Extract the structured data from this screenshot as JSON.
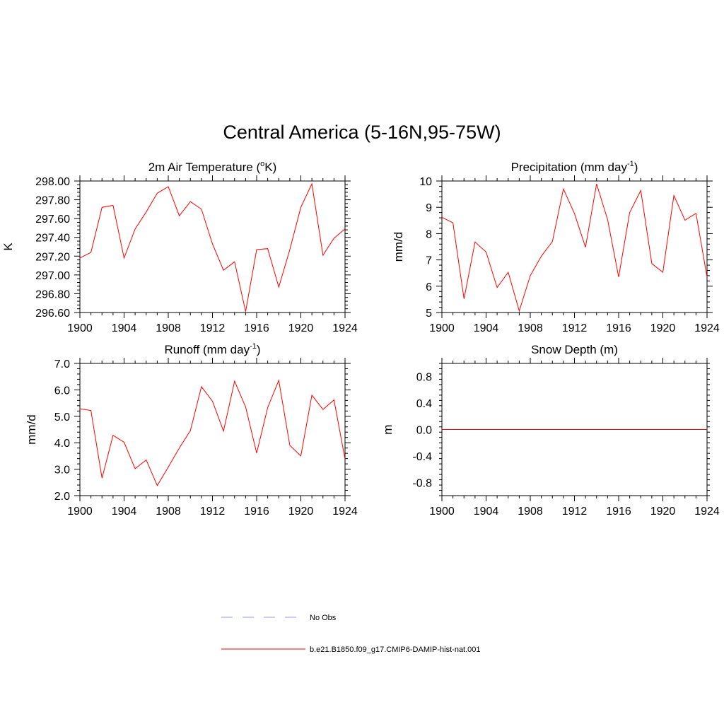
{
  "title": "Central America (5-16N,95-75W)",
  "colors": {
    "series": "#ff0000",
    "obs": "#9999ff",
    "axis": "#000000"
  },
  "legend": {
    "items": [
      {
        "label": "No Obs",
        "style": "dashed",
        "color": "#9999ff"
      },
      {
        "label": "b.e21.B1850.f09_g17.CMIP6-DAMIP-hist-nat.001",
        "style": "solid",
        "color": "#ff0000"
      }
    ]
  },
  "chart_data": [
    {
      "type": "line",
      "title": "2m Air Temperature (oK)",
      "title_parts": {
        "pre": "2m Air Temperature (",
        "sup": "o",
        "post": "K)"
      },
      "ylabel": "K",
      "xlim": [
        1900,
        1924
      ],
      "ylim": [
        296.6,
        298.0
      ],
      "xticks": [
        1900,
        1904,
        1908,
        1912,
        1916,
        1920,
        1924
      ],
      "yticks": [
        "296.60",
        "296.80",
        "297.00",
        "297.20",
        "297.40",
        "297.60",
        "297.80",
        "298.00"
      ],
      "x": [
        1900,
        1901,
        1902,
        1903,
        1904,
        1905,
        1906,
        1907,
        1908,
        1909,
        1910,
        1911,
        1912,
        1913,
        1914,
        1915,
        1916,
        1917,
        1918,
        1919,
        1920,
        1921,
        1922,
        1923,
        1924
      ],
      "series": [
        {
          "name": "b.e21.B1850.f09_g17.CMIP6-DAMIP-hist-nat.001",
          "values": [
            297.18,
            297.24,
            297.72,
            297.74,
            297.18,
            297.49,
            297.67,
            297.87,
            297.94,
            297.63,
            297.78,
            297.7,
            297.33,
            297.05,
            297.14,
            296.61,
            297.27,
            297.28,
            296.87,
            297.27,
            297.72,
            297.97,
            297.21,
            297.39,
            297.49
          ]
        }
      ]
    },
    {
      "type": "line",
      "title": "Precipitation (mm day-1)",
      "title_parts": {
        "pre": "Precipitation (mm day",
        "sup": "-1",
        "post": ")"
      },
      "ylabel": "mm/d",
      "xlim": [
        1900,
        1924
      ],
      "ylim": [
        5,
        10
      ],
      "xticks": [
        1900,
        1904,
        1908,
        1912,
        1916,
        1920,
        1924
      ],
      "yticks": [
        "5",
        "6",
        "7",
        "8",
        "9",
        "10"
      ],
      "x": [
        1900,
        1901,
        1902,
        1903,
        1904,
        1905,
        1906,
        1907,
        1908,
        1909,
        1910,
        1911,
        1912,
        1913,
        1914,
        1915,
        1916,
        1917,
        1918,
        1919,
        1920,
        1921,
        1922,
        1923,
        1924
      ],
      "series": [
        {
          "name": "b.e21.B1850.f09_g17.CMIP6-DAMIP-hist-nat.001",
          "values": [
            8.62,
            8.41,
            5.52,
            7.68,
            7.3,
            5.95,
            6.53,
            5.06,
            6.4,
            7.14,
            7.7,
            9.7,
            8.76,
            7.48,
            9.89,
            8.53,
            6.35,
            8.8,
            9.64,
            6.86,
            6.53,
            9.45,
            8.51,
            8.77,
            6.35
          ]
        }
      ]
    },
    {
      "type": "line",
      "title": "Runoff (mm day-1)",
      "title_parts": {
        "pre": "Runoff (mm day",
        "sup": "-1",
        "post": ")"
      },
      "ylabel": "mm/d",
      "xlim": [
        1900,
        1924
      ],
      "ylim": [
        2.0,
        7.0
      ],
      "xticks": [
        1900,
        1904,
        1908,
        1912,
        1916,
        1920,
        1924
      ],
      "yticks": [
        "2.0",
        "3.0",
        "4.0",
        "5.0",
        "6.0",
        "7.0"
      ],
      "x": [
        1900,
        1901,
        1902,
        1903,
        1904,
        1905,
        1906,
        1907,
        1908,
        1909,
        1910,
        1911,
        1912,
        1913,
        1914,
        1915,
        1916,
        1917,
        1918,
        1919,
        1920,
        1921,
        1922,
        1923,
        1924
      ],
      "series": [
        {
          "name": "b.e21.B1850.f09_g17.CMIP6-DAMIP-hist-nat.001",
          "values": [
            5.28,
            5.22,
            2.66,
            4.28,
            4.02,
            3.02,
            3.35,
            2.38,
            3.08,
            3.8,
            4.46,
            6.12,
            5.57,
            4.44,
            6.33,
            5.35,
            3.61,
            5.33,
            6.36,
            3.9,
            3.5,
            5.8,
            5.26,
            5.62,
            3.38
          ]
        }
      ]
    },
    {
      "type": "line",
      "title": "Snow Depth (m)",
      "title_parts": {
        "pre": "Snow Depth (m)",
        "sup": "",
        "post": ""
      },
      "ylabel": "m",
      "xlim": [
        1900,
        1924
      ],
      "ylim": [
        -1.0,
        1.0
      ],
      "xticks": [
        1900,
        1904,
        1908,
        1912,
        1916,
        1920,
        1924
      ],
      "yticks": [
        "-0.8",
        "-0.4",
        "0.0",
        "0.4",
        "0.8"
      ],
      "x": [
        1900,
        1924
      ],
      "series": [
        {
          "name": "b.e21.B1850.f09_g17.CMIP6-DAMIP-hist-nat.001",
          "values": [
            0.0,
            0.0
          ]
        }
      ]
    }
  ]
}
